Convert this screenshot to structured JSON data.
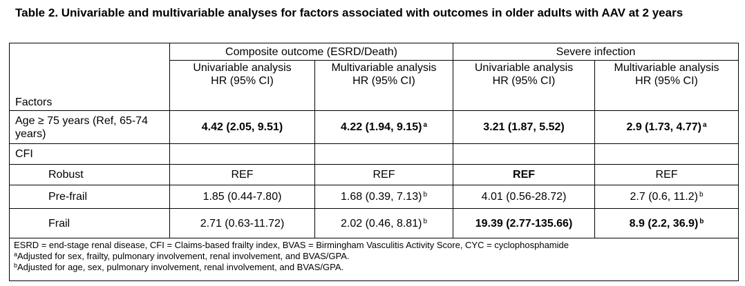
{
  "title": "Table 2. Univariable and multivariable analyses for factors associated with outcomes in older adults with AAV at 2 years",
  "table": {
    "header": {
      "factors": "Factors",
      "groups": [
        "Composite outcome (ESRD/Death)",
        "Severe infection"
      ],
      "subheaders": [
        [
          "Univariable analysis",
          "HR (95% CI)"
        ],
        [
          "Multivariable analysis",
          "HR (95% CI)"
        ],
        [
          "Univariable analysis",
          "HR (95% CI)"
        ],
        [
          "Multivariable analysis",
          "HR (95% CI)"
        ]
      ]
    },
    "rows": [
      {
        "factor": "Age ≥ 75 years (Ref, 65-74 years)",
        "cells": [
          {
            "text": "4.42 (2.05, 9.51)",
            "bold": true
          },
          {
            "text": "4.22 (1.94, 9.15)",
            "sup": "a",
            "bold": true
          },
          {
            "text": "3.21 (1.87, 5.52)",
            "bold": true
          },
          {
            "text": "2.9 (1.73, 4.77)",
            "sup": "a",
            "bold": true
          }
        ]
      },
      {
        "factor": "CFI",
        "subrows": [
          {
            "factor": "Robust",
            "cells": [
              {
                "text": "REF"
              },
              {
                "text": "REF"
              },
              {
                "text": "REF",
                "bold": true
              },
              {
                "text": "REF"
              }
            ]
          },
          {
            "factor": "Pre-frail",
            "cells": [
              {
                "text": "1.85 (0.44-7.80)"
              },
              {
                "text": "1.68 (0.39, 7.13)",
                "sup": "b"
              },
              {
                "text": "4.01 (0.56-28.72)"
              },
              {
                "text": "2.7 (0.6, 11.2)",
                "sup": "b"
              }
            ]
          },
          {
            "factor": "Frail",
            "cells": [
              {
                "text": "2.71 (0.63-11.72)"
              },
              {
                "text": "2.02 (0.46, 8.81)",
                "sup": "b"
              },
              {
                "text": "19.39 (2.77-135.66)",
                "bold": true
              },
              {
                "text": "8.9 (2.2, 36.9)",
                "sup": "b",
                "bold": true
              }
            ]
          }
        ]
      }
    ],
    "footnotes": [
      {
        "text": "ESRD = end-stage renal disease, CFI = Claims-based frailty index, BVAS = Birmingham Vasculitis Activity Score, CYC = cyclophosphamide"
      },
      {
        "mark": "a",
        "text": "Adjusted for sex, frailty, pulmonary involvement, renal involvement, and BVAS/GPA."
      },
      {
        "mark": "b",
        "text": "Adjusted for age, sex, pulmonary involvement, renal involvement, and BVAS/GPA."
      }
    ]
  }
}
